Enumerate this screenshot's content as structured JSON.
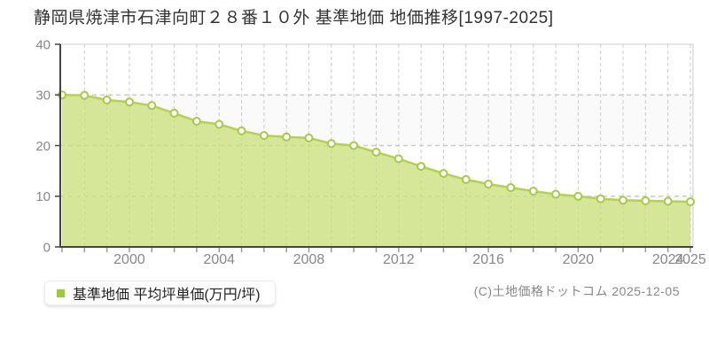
{
  "header": {
    "title": "静岡県焼津市石津向町２８番１０外 基準地価 地価推移[1997-2025]"
  },
  "legend": {
    "marker_color": "#9acd32",
    "label": "基準地価 平均坪単価(万円/坪)"
  },
  "footer": {
    "copyright": "(C)土地価格ドットコム 2025-12-05"
  },
  "chart_data": {
    "type": "area",
    "title": "静岡県焼津市石津向町２８番１０外 基準地価 地価推移[1997-2025]",
    "series_name": "基準地価 平均坪単価(万円/坪)",
    "x": [
      1997,
      1998,
      1999,
      2000,
      2001,
      2002,
      2003,
      2004,
      2005,
      2006,
      2007,
      2008,
      2009,
      2010,
      2011,
      2012,
      2013,
      2014,
      2015,
      2016,
      2017,
      2018,
      2019,
      2020,
      2021,
      2022,
      2023,
      2024,
      2025
    ],
    "values": [
      30.0,
      29.9,
      29.0,
      28.6,
      27.9,
      26.4,
      24.8,
      24.2,
      22.9,
      22.0,
      21.7,
      21.5,
      20.4,
      20.0,
      18.7,
      17.4,
      15.9,
      14.5,
      13.3,
      12.4,
      11.7,
      11.0,
      10.4,
      10.0,
      9.5,
      9.2,
      9.1,
      9.0,
      8.9
    ],
    "xlabel": "",
    "ylabel": "",
    "unit": "万円/坪",
    "ylim": [
      0,
      40
    ],
    "y_ticks": [
      0,
      10,
      20,
      30,
      40
    ],
    "x_tick_labels": [
      "2000",
      "2004",
      "2008",
      "2012",
      "2016",
      "2020",
      "2024",
      "2025"
    ],
    "x_tick_years": [
      2000,
      2004,
      2008,
      2012,
      2016,
      2020,
      2024,
      2025
    ],
    "grid": "dashed",
    "legend_position": "bottom-left",
    "colors": {
      "area_fill": "#cbe07c",
      "line": "#b2d254",
      "marker_fill": "#ffffff",
      "marker_stroke": "#a6cb45",
      "grid": "#cccccc",
      "band": "#fafafa",
      "plot_border": "#cccccc",
      "axis": "#444444",
      "tick": "#999999",
      "tick_label": "#888888"
    }
  }
}
